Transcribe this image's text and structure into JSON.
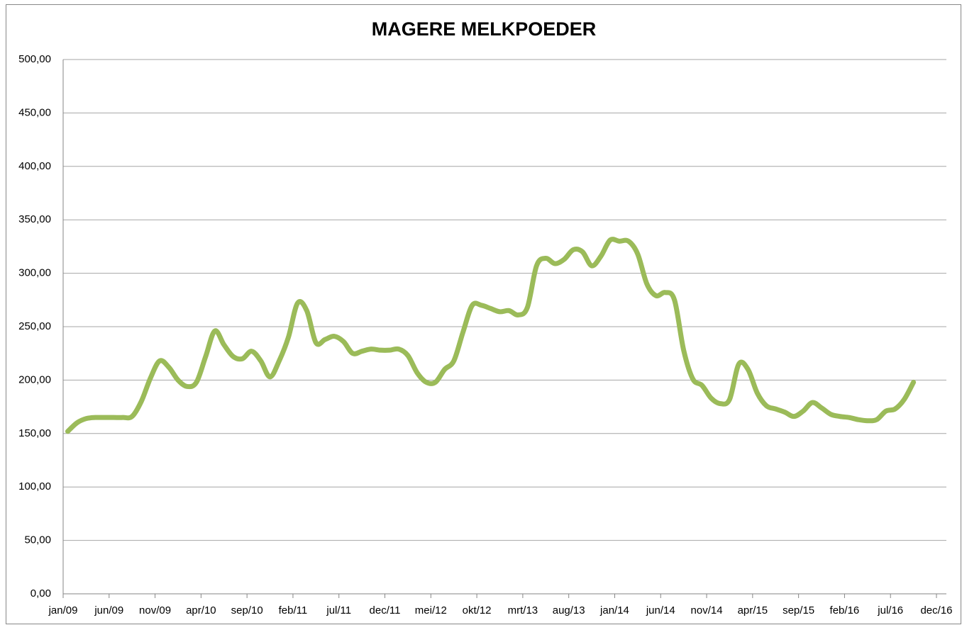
{
  "chart_data": {
    "type": "line",
    "title": "MAGERE MELKPOEDER",
    "categories": [
      "jan/09",
      null,
      null,
      null,
      null,
      "jun/09",
      null,
      null,
      null,
      null,
      "nov/09",
      null,
      null,
      null,
      null,
      "apr/10",
      null,
      null,
      null,
      null,
      "sep/10",
      null,
      null,
      null,
      null,
      "feb/11",
      null,
      null,
      null,
      null,
      "jul/11",
      null,
      null,
      null,
      null,
      "dec/11",
      null,
      null,
      null,
      null,
      "mei/12",
      null,
      null,
      null,
      null,
      "okt/12",
      null,
      null,
      null,
      null,
      "mrt/13",
      null,
      null,
      null,
      null,
      "aug/13",
      null,
      null,
      null,
      null,
      "jan/14",
      null,
      null,
      null,
      null,
      "jun/14",
      null,
      null,
      null,
      null,
      "nov/14",
      null,
      null,
      null,
      null,
      "apr/15",
      null,
      null,
      null,
      null,
      "sep/15",
      null,
      null,
      null,
      null,
      "feb/16",
      null,
      null,
      null,
      null,
      "jul/16",
      null,
      null,
      null,
      null,
      "dec/16"
    ],
    "series": [
      {
        "color": "#9bbb59",
        "values": [
          152,
          160,
          164,
          165,
          165,
          165,
          165,
          166,
          180,
          202,
          218,
          212,
          200,
          194,
          198,
          222,
          246,
          233,
          222,
          220,
          227,
          218,
          203,
          218,
          240,
          272,
          265,
          235,
          238,
          241,
          236,
          225,
          227,
          229,
          228,
          228,
          229,
          223,
          207,
          198,
          198,
          210,
          218,
          245,
          270,
          270,
          267,
          264,
          265,
          261,
          268,
          307,
          314,
          309,
          313,
          322,
          320,
          307,
          316,
          331,
          330,
          330,
          318,
          290,
          279,
          282,
          275,
          228,
          201,
          195,
          183,
          178,
          182,
          215,
          210,
          188,
          176,
          173,
          170,
          166,
          171,
          179,
          174,
          168,
          166,
          165,
          163,
          162,
          163,
          171,
          173,
          182,
          198,
          null,
          null,
          null
        ]
      }
    ],
    "ylim": [
      0,
      500
    ],
    "yticks": [
      {
        "value": 0,
        "label": "0,00"
      },
      {
        "value": 50,
        "label": "50,00"
      },
      {
        "value": 100,
        "label": "100,00"
      },
      {
        "value": 150,
        "label": "150,00"
      },
      {
        "value": 200,
        "label": "200,00"
      },
      {
        "value": 250,
        "label": "250,00"
      },
      {
        "value": 300,
        "label": "300,00"
      },
      {
        "value": 350,
        "label": "350,00"
      },
      {
        "value": 400,
        "label": "400,00"
      },
      {
        "value": 450,
        "label": "450,00"
      },
      {
        "value": 500,
        "label": "500,00"
      }
    ],
    "grid": true
  }
}
